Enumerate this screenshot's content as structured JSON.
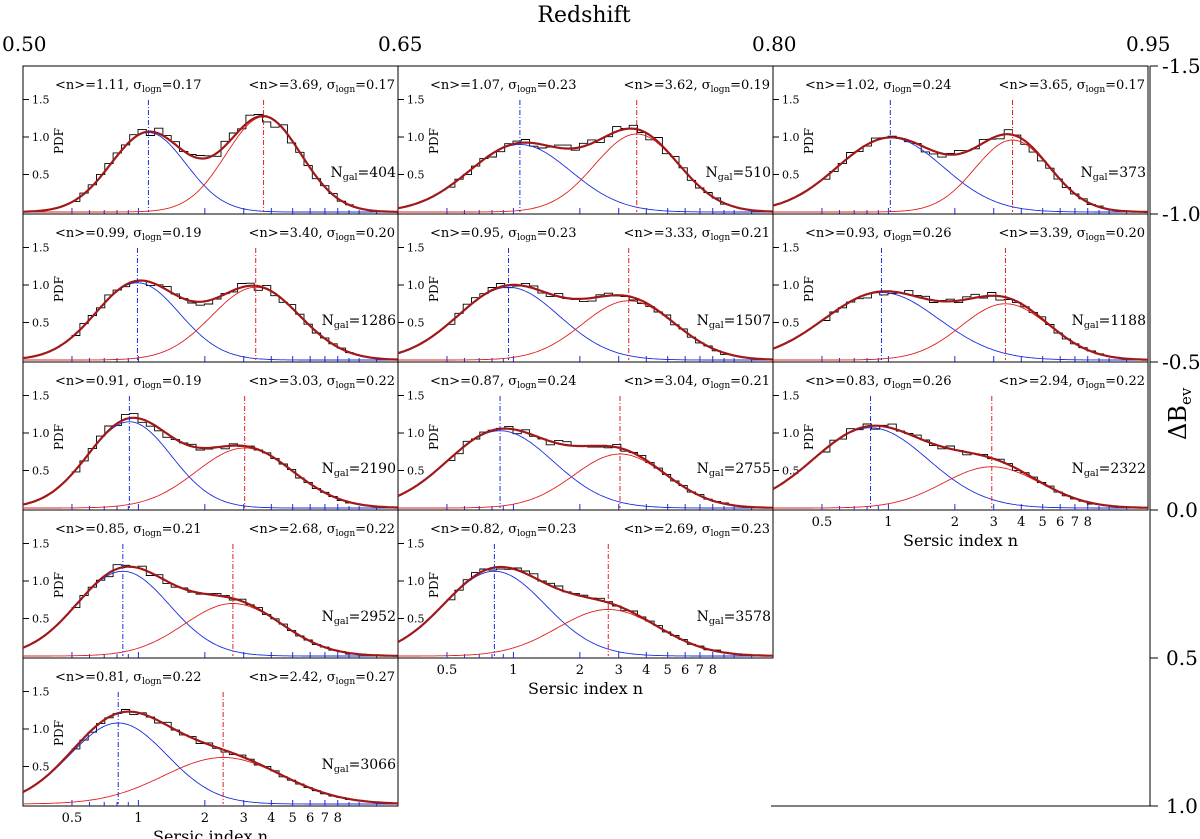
{
  "figure": {
    "top_axis_label": "Redshift",
    "top_ticks": [
      "0.50",
      "0.65",
      "0.80",
      "0.95"
    ],
    "right_axis_label": "ΔB",
    "right_axis_label_sub": "ev",
    "right_ticks": [
      "-1.5",
      "-1.0",
      "-0.5",
      "0.0",
      "0.5",
      "1.0"
    ]
  },
  "chart_data": {
    "type": "panel-grid",
    "x_scale": "log",
    "panel_common": {
      "xlabel": "Sersic index n",
      "x_tick_labels": [
        "0.5",
        "1",
        "2",
        "3",
        "4",
        "5",
        "6",
        "7",
        "8"
      ],
      "x_tick_values": [
        0.5,
        1,
        2,
        3,
        4,
        5,
        6,
        7,
        8
      ],
      "xlim": [
        0.3,
        15
      ],
      "ylabel": "PDF",
      "y_tick_labels": [
        "0.5",
        "1.0",
        "1.5"
      ],
      "y_tick_values": [
        0.5,
        1.0,
        1.5
      ],
      "ylim": [
        0,
        1.6
      ],
      "colors": {
        "disk": "#1a2ee0",
        "bulge": "#e02020",
        "total": "#a01818",
        "hist": "#000000"
      }
    },
    "panels": [
      {
        "row": 0,
        "col": 0,
        "n1": 1.11,
        "s1": 0.17,
        "n2": 3.69,
        "s2": 0.17,
        "ngal": 404,
        "t1": "<n>=1.11, σ",
        "v1": "=0.17",
        "t2": "<n>=3.69, σ",
        "v2": "=0.17",
        "ngal_label": "=404",
        "peak1": 1.1,
        "peak2": 1.28,
        "amp1": 1.06,
        "amp2": 1.27
      },
      {
        "row": 0,
        "col": 1,
        "n1": 1.07,
        "s1": 0.23,
        "n2": 3.62,
        "s2": 0.19,
        "ngal": 510,
        "t1": "<n>=1.07, σ",
        "v1": "=0.23",
        "t2": "<n>=3.62, σ",
        "v2": "=0.19",
        "ngal_label": "=510",
        "amp1": 0.9,
        "amp2": 1.04
      },
      {
        "row": 0,
        "col": 2,
        "n1": 1.02,
        "s1": 0.24,
        "n2": 3.65,
        "s2": 0.17,
        "ngal": 373,
        "t1": "<n>=1.02, σ",
        "v1": "=0.24",
        "t2": "<n>=3.65, σ",
        "v2": "=0.17",
        "ngal_label": "=373",
        "amp1": 0.99,
        "amp2": 0.96
      },
      {
        "row": 1,
        "col": 0,
        "n1": 0.99,
        "s1": 0.19,
        "n2": 3.4,
        "s2": 0.2,
        "ngal": 1286,
        "t1": "<n>=0.99, σ",
        "v1": "=0.19",
        "t2": "<n>=3.40, σ",
        "v2": "=0.20",
        "ngal_label": "=1286",
        "amp1": 1.03,
        "amp2": 0.97
      },
      {
        "row": 1,
        "col": 1,
        "n1": 0.95,
        "s1": 0.23,
        "n2": 3.33,
        "s2": 0.21,
        "ngal": 1507,
        "t1": "<n>=0.95, σ",
        "v1": "=0.23",
        "t2": "<n>=3.33, σ",
        "v2": "=0.21",
        "ngal_label": "=1507",
        "amp1": 0.97,
        "amp2": 0.79
      },
      {
        "row": 1,
        "col": 2,
        "n1": 0.93,
        "s1": 0.26,
        "n2": 3.39,
        "s2": 0.2,
        "ngal": 1188,
        "t1": "<n>=0.93, σ",
        "v1": "=0.26",
        "t2": "<n>=3.39, σ",
        "v2": "=0.20",
        "ngal_label": "=1188",
        "amp1": 0.9,
        "amp2": 0.75
      },
      {
        "row": 2,
        "col": 0,
        "n1": 0.91,
        "s1": 0.19,
        "n2": 3.03,
        "s2": 0.22,
        "ngal": 2190,
        "t1": "<n>=0.91, σ",
        "v1": "=0.19",
        "t2": "<n>=3.03, σ",
        "v2": "=0.22",
        "ngal_label": "=2190",
        "amp1": 1.15,
        "amp2": 0.8
      },
      {
        "row": 2,
        "col": 1,
        "n1": 0.87,
        "s1": 0.24,
        "n2": 3.04,
        "s2": 0.21,
        "ngal": 2755,
        "t1": "<n>=0.87, σ",
        "v1": "=0.24",
        "t2": "<n>=3.04, σ",
        "v2": "=0.21",
        "ngal_label": "=2755",
        "amp1": 1.03,
        "amp2": 0.72
      },
      {
        "row": 2,
        "col": 2,
        "n1": 0.83,
        "s1": 0.26,
        "n2": 2.94,
        "s2": 0.22,
        "ngal": 2322,
        "t1": "<n>=0.83, σ",
        "v1": "=0.26",
        "t2": "<n>=2.94, σ",
        "v2": "=0.22",
        "ngal_label": "=2322",
        "amp1": 1.07,
        "amp2": 0.55,
        "show_xaxis": true
      },
      {
        "row": 3,
        "col": 0,
        "n1": 0.85,
        "s1": 0.21,
        "n2": 2.68,
        "s2": 0.22,
        "ngal": 2952,
        "t1": "<n>=0.85, σ",
        "v1": "=0.21",
        "t2": "<n>=2.68, σ",
        "v2": "=0.22",
        "ngal_label": "=2952",
        "amp1": 1.13,
        "amp2": 0.7
      },
      {
        "row": 3,
        "col": 1,
        "n1": 0.82,
        "s1": 0.23,
        "n2": 2.69,
        "s2": 0.23,
        "ngal": 3578,
        "t1": "<n>=0.82, σ",
        "v1": "=0.23",
        "t2": "<n>=2.69, σ",
        "v2": "=0.23",
        "ngal_label": "=3578",
        "amp1": 1.13,
        "amp2": 0.62,
        "show_xaxis": true
      },
      {
        "row": 4,
        "col": 0,
        "n1": 0.81,
        "s1": 0.22,
        "n2": 2.42,
        "s2": 0.27,
        "ngal": 3066,
        "t1": "<n>=0.81, σ",
        "v1": "=0.22",
        "t2": "<n>=2.42, σ",
        "v2": "=0.27",
        "ngal_label": "=3066",
        "amp1": 1.08,
        "amp2": 0.62,
        "show_xaxis": true
      }
    ]
  }
}
